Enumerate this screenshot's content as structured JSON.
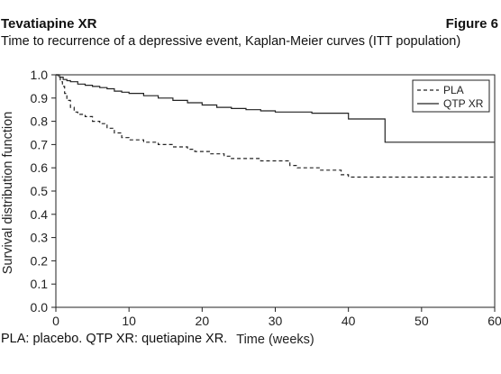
{
  "header": {
    "title": "Tevatiapine XR",
    "figure_label": "Figure 6",
    "subtitle": "Time to recurrence of a depressive event, Kaplan-Meier curves (ITT population)"
  },
  "footnote": "PLA: placebo. QTP XR: quetiapine XR.",
  "chart_data": {
    "type": "line",
    "title": "",
    "xlabel": "Time (weeks)",
    "ylabel": "Survival distribution function",
    "xlim": [
      0,
      60
    ],
    "ylim": [
      0,
      1.0
    ],
    "xticks": [
      0,
      10,
      20,
      30,
      40,
      50,
      60
    ],
    "yticks": [
      0.0,
      0.1,
      0.2,
      0.3,
      0.4,
      0.5,
      0.6,
      0.7,
      0.8,
      0.9,
      1.0
    ],
    "ytick_labels": [
      "0.0",
      "0.1",
      "0.2",
      "0.3",
      "0.4",
      "0.5",
      "0.6",
      "0.7",
      "0.8",
      "0.9",
      "1.0"
    ],
    "grid": false,
    "legend_position": "top-right",
    "step": true,
    "series": [
      {
        "name": "PLA",
        "style": "dashed",
        "color": "#222222",
        "x": [
          0,
          0.3,
          0.6,
          0.9,
          1.2,
          1.5,
          2.0,
          2.5,
          3,
          4,
          5,
          6,
          7,
          8,
          9,
          10,
          12,
          14,
          16,
          18,
          19,
          20,
          21,
          22,
          23,
          24,
          26,
          28,
          29,
          30,
          32,
          33,
          34,
          36,
          38,
          39,
          40,
          45,
          50,
          60
        ],
        "y": [
          1.0,
          0.99,
          0.97,
          0.95,
          0.92,
          0.89,
          0.86,
          0.84,
          0.83,
          0.82,
          0.8,
          0.79,
          0.77,
          0.75,
          0.73,
          0.72,
          0.71,
          0.7,
          0.69,
          0.68,
          0.67,
          0.67,
          0.66,
          0.66,
          0.65,
          0.64,
          0.64,
          0.63,
          0.63,
          0.63,
          0.61,
          0.6,
          0.6,
          0.59,
          0.59,
          0.57,
          0.56,
          0.56,
          0.56,
          0.56
        ]
      },
      {
        "name": "QTP XR",
        "style": "solid",
        "color": "#222222",
        "x": [
          0,
          0.5,
          1,
          1.5,
          2,
          3,
          4,
          5,
          6,
          7,
          8,
          9,
          10,
          12,
          14,
          16,
          18,
          20,
          22,
          24,
          26,
          28,
          30,
          32,
          35,
          40,
          44.5,
          45,
          50,
          60
        ],
        "y": [
          1.0,
          0.99,
          0.98,
          0.975,
          0.97,
          0.96,
          0.955,
          0.95,
          0.945,
          0.94,
          0.93,
          0.925,
          0.92,
          0.91,
          0.9,
          0.89,
          0.88,
          0.87,
          0.86,
          0.855,
          0.85,
          0.845,
          0.84,
          0.84,
          0.835,
          0.81,
          0.81,
          0.71,
          0.71,
          0.71
        ]
      }
    ]
  }
}
